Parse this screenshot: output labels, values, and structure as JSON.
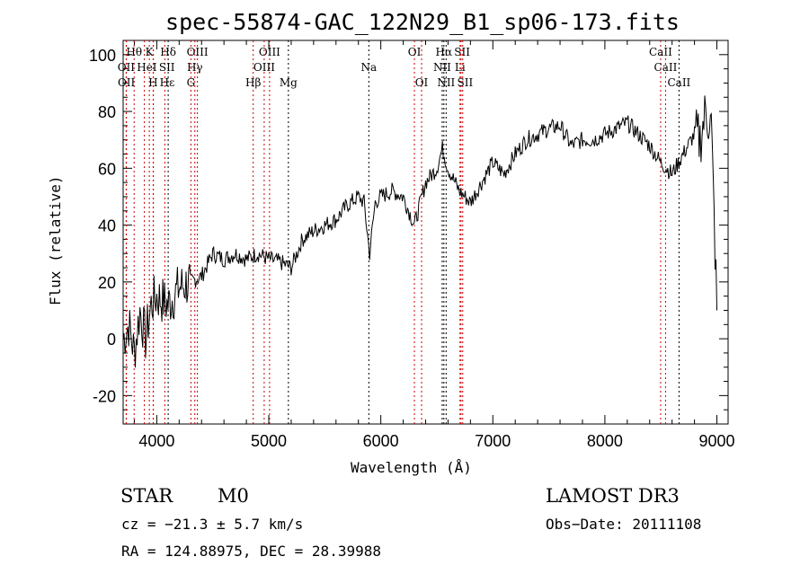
{
  "chart_data": {
    "type": "line",
    "title": "spec-55874-GAC_122N29_B1_sp06-173.fits",
    "xlabel": "Wavelength (Å)",
    "ylabel": "Flux (relative)",
    "xlim": [
      3700,
      9100
    ],
    "ylim": [
      -30,
      105
    ],
    "xticks": [
      4000,
      5000,
      6000,
      7000,
      8000,
      9000
    ],
    "yticks": [
      -20,
      0,
      20,
      40,
      60,
      80,
      100
    ],
    "grid": false,
    "series": [
      {
        "name": "spectrum",
        "x": [
          3700,
          3750,
          3800,
          3850,
          3900,
          3950,
          4000,
          4100,
          4200,
          4300,
          4400,
          4500,
          4600,
          4700,
          4800,
          4900,
          5000,
          5100,
          5200,
          5300,
          5400,
          5500,
          5600,
          5700,
          5800,
          5850,
          5900,
          5950,
          6000,
          6100,
          6200,
          6300,
          6400,
          6500,
          6550,
          6600,
          6700,
          6800,
          6900,
          7000,
          7100,
          7200,
          7300,
          7400,
          7500,
          7600,
          7700,
          7800,
          7900,
          8000,
          8100,
          8200,
          8300,
          8400,
          8500,
          8600,
          8700,
          8800,
          8850,
          8900,
          8950,
          9000
        ],
        "y": [
          0,
          5,
          -5,
          10,
          0,
          12,
          15,
          12,
          18,
          20,
          22,
          30,
          28,
          30,
          28,
          30,
          28,
          27,
          25,
          35,
          38,
          40,
          42,
          47,
          50,
          48,
          30,
          48,
          50,
          52,
          50,
          40,
          55,
          60,
          67,
          60,
          52,
          48,
          55,
          62,
          58,
          65,
          70,
          72,
          74,
          75,
          68,
          70,
          70,
          72,
          74,
          76,
          72,
          68,
          62,
          58,
          65,
          72,
          70,
          80,
          75,
          10
        ]
      }
    ],
    "lines": [
      {
        "label": "Hθ",
        "wave": 3798,
        "row": 1,
        "color": "#cc0000"
      },
      {
        "label": "K",
        "wave": 3934,
        "row": 1,
        "color": "#cc0000"
      },
      {
        "label": "Hδ",
        "wave": 4102,
        "row": 1,
        "color": "#000000"
      },
      {
        "label": "OIII",
        "wave": 4363,
        "row": 1,
        "color": "#cc0000"
      },
      {
        "label": "OIII",
        "wave": 5007,
        "row": 1,
        "color": "#cc0000"
      },
      {
        "label": "OI",
        "wave": 6300,
        "row": 1,
        "color": "#cc0000"
      },
      {
        "label": "Hα",
        "wave": 6563,
        "row": 1,
        "color": "#000000"
      },
      {
        "label": "SII",
        "wave": 6716,
        "row": 1,
        "color": "#cc0000"
      },
      {
        "label": "CaII",
        "wave": 8498,
        "row": 1,
        "color": "#cc0000"
      },
      {
        "label": "OII",
        "wave": 3727,
        "row": 2,
        "color": "#cc0000"
      },
      {
        "label": "HeI",
        "wave": 3889,
        "row": 2,
        "color": "#cc0000"
      },
      {
        "label": "SII",
        "wave": 4072,
        "row": 2,
        "color": "#cc0000"
      },
      {
        "label": "Hγ",
        "wave": 4340,
        "row": 2,
        "color": "#cc0000"
      },
      {
        "label": "OIII",
        "wave": 4959,
        "row": 2,
        "color": "#cc0000"
      },
      {
        "label": "Na",
        "wave": 5893,
        "row": 2,
        "color": "#000000"
      },
      {
        "label": "NII",
        "wave": 6548,
        "row": 2,
        "color": "#000000"
      },
      {
        "label": "Li",
        "wave": 6707,
        "row": 2,
        "color": "#cc0000"
      },
      {
        "label": "CaII",
        "wave": 8542,
        "row": 2,
        "color": "#cc0000"
      },
      {
        "label": "OII",
        "wave": 3729,
        "row": 3,
        "color": "#cc0000"
      },
      {
        "label": "Hε",
        "wave": 3970,
        "row": 3,
        "color": "#cc0000"
      },
      {
        "label": "H",
        "wave": 3968,
        "row": 3,
        "color": "#cc0000"
      },
      {
        "label": "G",
        "wave": 4305,
        "row": 3,
        "color": "#cc0000"
      },
      {
        "label": "Hβ",
        "wave": 4861,
        "row": 3,
        "color": "#cc0000"
      },
      {
        "label": "Mg",
        "wave": 5175,
        "row": 3,
        "color": "#000000"
      },
      {
        "label": "OI",
        "wave": 6364,
        "row": 3,
        "color": "#cc0000"
      },
      {
        "label": "NII",
        "wave": 6583,
        "row": 3,
        "color": "#000000"
      },
      {
        "label": "SII",
        "wave": 6731,
        "row": 3,
        "color": "#cc0000"
      },
      {
        "label": "CaII",
        "wave": 8662,
        "row": 3,
        "color": "#000000"
      }
    ]
  },
  "info": {
    "class": "STAR",
    "subclass": "M0",
    "cz": "cz = −21.3 ± 5.7 km/s",
    "coords": "RA = 124.88975, DEC =  28.39988",
    "survey": "LAMOST DR3",
    "obs_date": "Obs−Date: 20111108"
  }
}
